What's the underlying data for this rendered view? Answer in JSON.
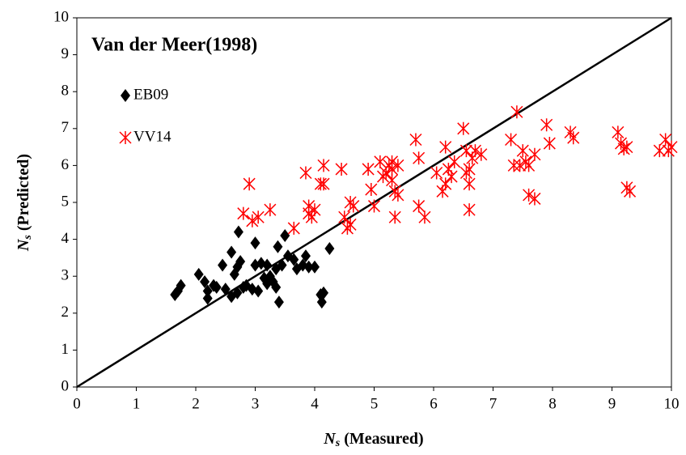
{
  "chart_data": {
    "type": "scatter",
    "title": "Van der Meer(1998)",
    "x_label": {
      "symbol": "N",
      "subscript": "s",
      "text": " (Measured)"
    },
    "y_label": {
      "symbol": "N",
      "subscript": "s",
      "text": " (Predicted)"
    },
    "xlim": [
      0,
      10
    ],
    "ylim": [
      0,
      10
    ],
    "xticks": [
      0,
      1,
      2,
      3,
      4,
      5,
      6,
      7,
      8,
      9,
      10
    ],
    "yticks": [
      0,
      1,
      2,
      3,
      4,
      5,
      6,
      7,
      8,
      9,
      10
    ],
    "legend": "upper left",
    "series": [
      {
        "name": "EB09",
        "color": "#000000",
        "marker": "diamond",
        "x": [
          1.65,
          1.7,
          1.75,
          2.05,
          2.15,
          2.2,
          2.2,
          2.3,
          2.35,
          2.45,
          2.5,
          2.6,
          2.6,
          2.65,
          2.7,
          2.7,
          2.72,
          2.75,
          2.8,
          2.85,
          2.95,
          3.0,
          3.0,
          3.05,
          3.1,
          3.15,
          3.2,
          3.2,
          3.25,
          3.3,
          3.35,
          3.35,
          3.38,
          3.4,
          3.45,
          3.5,
          3.55,
          3.65,
          3.7,
          3.8,
          3.85,
          3.9,
          4.0,
          4.1,
          4.12,
          4.15,
          4.25
        ],
        "values": [
          2.5,
          2.6,
          2.75,
          3.05,
          2.85,
          2.4,
          2.6,
          2.75,
          2.7,
          3.3,
          2.65,
          2.45,
          3.65,
          3.05,
          3.25,
          2.55,
          4.2,
          3.4,
          2.7,
          2.75,
          2.65,
          3.3,
          3.9,
          2.6,
          3.35,
          2.95,
          2.8,
          3.3,
          3.0,
          2.85,
          3.2,
          2.7,
          3.8,
          2.3,
          3.3,
          4.1,
          3.55,
          3.45,
          3.2,
          3.3,
          3.55,
          3.25,
          3.25,
          2.5,
          2.3,
          2.55,
          3.75
        ]
      },
      {
        "name": "VV14",
        "color": "#ff0000",
        "marker": "asterisk",
        "x": [
          2.8,
          2.9,
          2.95,
          3.05,
          3.25,
          3.65,
          3.85,
          3.9,
          3.9,
          3.95,
          4.0,
          4.1,
          4.15,
          4.15,
          4.45,
          4.5,
          4.55,
          4.6,
          4.6,
          4.65,
          4.9,
          4.95,
          5.0,
          5.1,
          5.15,
          5.2,
          5.25,
          5.3,
          5.3,
          5.3,
          5.35,
          5.35,
          5.4,
          5.4,
          5.7,
          5.75,
          5.75,
          5.85,
          6.05,
          6.15,
          6.2,
          6.2,
          6.25,
          6.3,
          6.35,
          6.5,
          6.55,
          6.55,
          6.6,
          6.6,
          6.6,
          6.65,
          6.7,
          6.8,
          7.3,
          7.35,
          7.4,
          7.45,
          7.5,
          7.55,
          7.6,
          7.6,
          7.7,
          7.7,
          7.9,
          7.95,
          8.3,
          8.35,
          9.1,
          9.15,
          9.2,
          9.25,
          9.25,
          9.3,
          9.8,
          9.9,
          9.95,
          10.0
        ],
        "values": [
          4.7,
          5.5,
          4.5,
          4.6,
          4.8,
          4.3,
          5.8,
          4.7,
          4.9,
          4.6,
          4.8,
          5.5,
          6.0,
          5.5,
          5.9,
          4.6,
          4.3,
          4.4,
          5.0,
          4.9,
          5.9,
          5.35,
          4.9,
          6.1,
          5.7,
          5.8,
          6.0,
          6.1,
          5.9,
          5.6,
          4.6,
          5.3,
          5.2,
          6.0,
          6.7,
          4.9,
          6.2,
          4.6,
          5.8,
          5.3,
          5.5,
          6.5,
          5.9,
          5.7,
          6.1,
          7.0,
          6.4,
          5.8,
          5.9,
          5.5,
          4.8,
          6.2,
          6.4,
          6.3,
          6.7,
          6.0,
          7.45,
          6.0,
          6.4,
          6.1,
          6.0,
          5.2,
          6.3,
          5.1,
          7.1,
          6.6,
          6.9,
          6.75,
          6.9,
          6.6,
          6.45,
          5.4,
          6.5,
          5.3,
          6.4,
          6.7,
          6.4,
          6.5
        ]
      }
    ]
  }
}
